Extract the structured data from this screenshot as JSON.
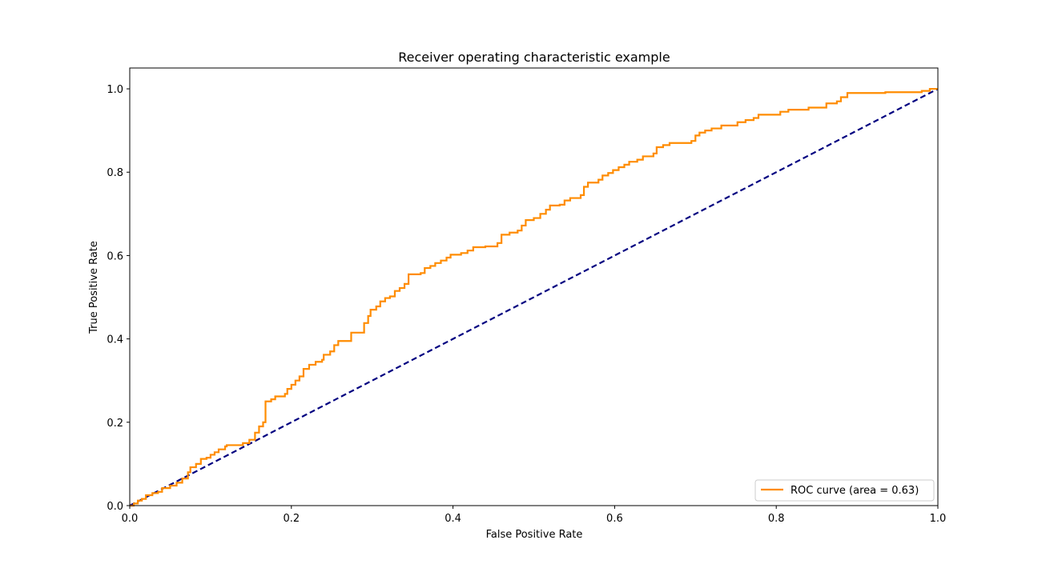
{
  "chart_data": {
    "type": "line",
    "title": "Receiver operating characteristic example",
    "xlabel": "False Positive Rate",
    "ylabel": "True Positive Rate",
    "xlim": [
      0.0,
      1.0
    ],
    "ylim": [
      0.0,
      1.05
    ],
    "xticks": [
      "0.0",
      "0.2",
      "0.4",
      "0.6",
      "0.8",
      "1.0"
    ],
    "yticks": [
      "0.0",
      "0.2",
      "0.4",
      "0.6",
      "0.8",
      "1.0"
    ],
    "grid": false,
    "legend_position": "lower-right",
    "series": [
      {
        "name": "ROC curve (area = 0.63)",
        "color": "#ff8c00",
        "style": "solid",
        "step": true,
        "points": [
          [
            0.0,
            0.0
          ],
          [
            0.005,
            0.005
          ],
          [
            0.01,
            0.012
          ],
          [
            0.015,
            0.016
          ],
          [
            0.02,
            0.025
          ],
          [
            0.028,
            0.03
          ],
          [
            0.035,
            0.033
          ],
          [
            0.04,
            0.042
          ],
          [
            0.05,
            0.048
          ],
          [
            0.058,
            0.055
          ],
          [
            0.065,
            0.065
          ],
          [
            0.072,
            0.08
          ],
          [
            0.075,
            0.092
          ],
          [
            0.082,
            0.1
          ],
          [
            0.088,
            0.112
          ],
          [
            0.095,
            0.115
          ],
          [
            0.1,
            0.122
          ],
          [
            0.105,
            0.128
          ],
          [
            0.11,
            0.135
          ],
          [
            0.118,
            0.142
          ],
          [
            0.12,
            0.145
          ],
          [
            0.14,
            0.15
          ],
          [
            0.148,
            0.158
          ],
          [
            0.155,
            0.175
          ],
          [
            0.16,
            0.19
          ],
          [
            0.165,
            0.2
          ],
          [
            0.168,
            0.25
          ],
          [
            0.175,
            0.255
          ],
          [
            0.18,
            0.262
          ],
          [
            0.192,
            0.268
          ],
          [
            0.195,
            0.28
          ],
          [
            0.2,
            0.29
          ],
          [
            0.205,
            0.3
          ],
          [
            0.21,
            0.31
          ],
          [
            0.215,
            0.328
          ],
          [
            0.222,
            0.338
          ],
          [
            0.23,
            0.345
          ],
          [
            0.238,
            0.35
          ],
          [
            0.24,
            0.362
          ],
          [
            0.248,
            0.37
          ],
          [
            0.253,
            0.385
          ],
          [
            0.258,
            0.395
          ],
          [
            0.27,
            0.395
          ],
          [
            0.274,
            0.415
          ],
          [
            0.285,
            0.415
          ],
          [
            0.29,
            0.438
          ],
          [
            0.295,
            0.455
          ],
          [
            0.298,
            0.47
          ],
          [
            0.305,
            0.478
          ],
          [
            0.31,
            0.49
          ],
          [
            0.316,
            0.498
          ],
          [
            0.322,
            0.502
          ],
          [
            0.328,
            0.515
          ],
          [
            0.334,
            0.522
          ],
          [
            0.34,
            0.532
          ],
          [
            0.345,
            0.555
          ],
          [
            0.36,
            0.558
          ],
          [
            0.365,
            0.57
          ],
          [
            0.372,
            0.575
          ],
          [
            0.378,
            0.582
          ],
          [
            0.385,
            0.588
          ],
          [
            0.392,
            0.595
          ],
          [
            0.397,
            0.602
          ],
          [
            0.41,
            0.606
          ],
          [
            0.418,
            0.612
          ],
          [
            0.425,
            0.62
          ],
          [
            0.44,
            0.622
          ],
          [
            0.455,
            0.63
          ],
          [
            0.46,
            0.65
          ],
          [
            0.47,
            0.655
          ],
          [
            0.48,
            0.66
          ],
          [
            0.485,
            0.672
          ],
          [
            0.49,
            0.685
          ],
          [
            0.5,
            0.69
          ],
          [
            0.508,
            0.7
          ],
          [
            0.515,
            0.71
          ],
          [
            0.52,
            0.72
          ],
          [
            0.532,
            0.722
          ],
          [
            0.538,
            0.732
          ],
          [
            0.545,
            0.738
          ],
          [
            0.558,
            0.745
          ],
          [
            0.562,
            0.765
          ],
          [
            0.567,
            0.775
          ],
          [
            0.58,
            0.782
          ],
          [
            0.585,
            0.792
          ],
          [
            0.592,
            0.798
          ],
          [
            0.598,
            0.805
          ],
          [
            0.605,
            0.812
          ],
          [
            0.612,
            0.818
          ],
          [
            0.618,
            0.825
          ],
          [
            0.628,
            0.83
          ],
          [
            0.635,
            0.838
          ],
          [
            0.648,
            0.845
          ],
          [
            0.652,
            0.86
          ],
          [
            0.66,
            0.865
          ],
          [
            0.668,
            0.87
          ],
          [
            0.695,
            0.875
          ],
          [
            0.7,
            0.888
          ],
          [
            0.705,
            0.895
          ],
          [
            0.712,
            0.9
          ],
          [
            0.72,
            0.905
          ],
          [
            0.732,
            0.912
          ],
          [
            0.752,
            0.92
          ],
          [
            0.762,
            0.925
          ],
          [
            0.772,
            0.93
          ],
          [
            0.778,
            0.938
          ],
          [
            0.805,
            0.945
          ],
          [
            0.815,
            0.95
          ],
          [
            0.84,
            0.955
          ],
          [
            0.862,
            0.965
          ],
          [
            0.875,
            0.97
          ],
          [
            0.88,
            0.98
          ],
          [
            0.888,
            0.99
          ],
          [
            0.91,
            0.99
          ],
          [
            0.935,
            0.992
          ],
          [
            0.98,
            0.995
          ],
          [
            0.99,
            1.0
          ],
          [
            1.0,
            1.0
          ]
        ]
      },
      {
        "name": "",
        "color": "#000080",
        "style": "dashed",
        "step": false,
        "points": [
          [
            0.0,
            0.0
          ],
          [
            1.0,
            1.0
          ]
        ]
      }
    ]
  }
}
